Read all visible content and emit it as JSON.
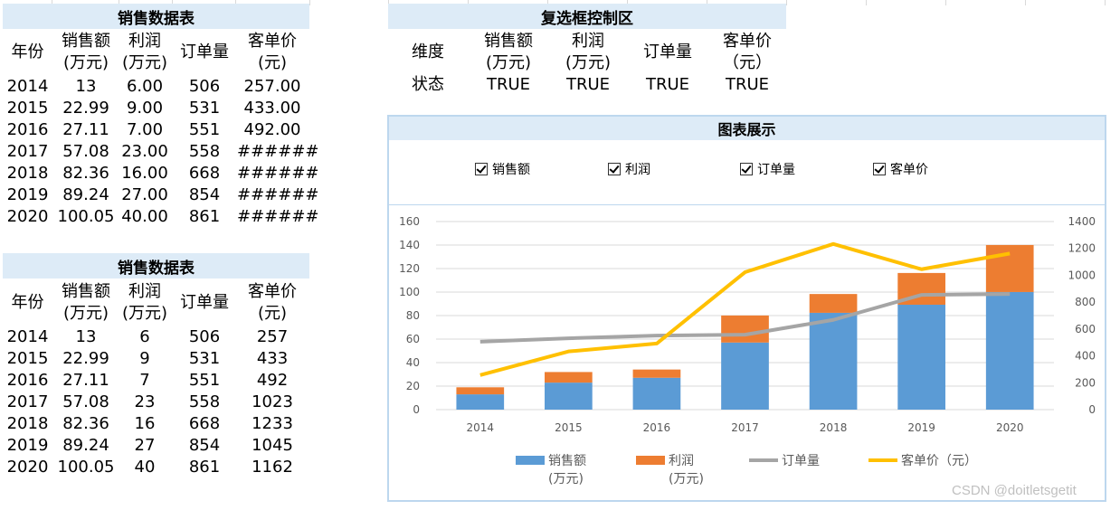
{
  "table1": {
    "title": "销售数据表",
    "headers": [
      [
        "年份"
      ],
      [
        "销售额",
        "(万元)"
      ],
      [
        "利润",
        "(万元)"
      ],
      [
        "订单量"
      ],
      [
        "客单价",
        "(元)"
      ]
    ],
    "rows": [
      [
        "2014",
        "13",
        "6.00",
        "506",
        "257.00"
      ],
      [
        "2015",
        "22.99",
        "9.00",
        "531",
        "433.00"
      ],
      [
        "2016",
        "27.11",
        "7.00",
        "551",
        "492.00"
      ],
      [
        "2017",
        "57.08",
        "23.00",
        "558",
        "######"
      ],
      [
        "2018",
        "82.36",
        "16.00",
        "668",
        "######"
      ],
      [
        "2019",
        "89.24",
        "27.00",
        "854",
        "######"
      ],
      [
        "2020",
        "100.05",
        "40.00",
        "861",
        "######"
      ]
    ]
  },
  "table2": {
    "title": "销售数据表",
    "headers": [
      [
        "年份"
      ],
      [
        "销售额",
        "(万元)"
      ],
      [
        "利润",
        "(万元)"
      ],
      [
        "订单量"
      ],
      [
        "客单价",
        "(元)"
      ]
    ],
    "rows": [
      [
        "2014",
        "13",
        "6",
        "506",
        "257"
      ],
      [
        "2015",
        "22.99",
        "9",
        "531",
        "433"
      ],
      [
        "2016",
        "27.11",
        "7",
        "551",
        "492"
      ],
      [
        "2017",
        "57.08",
        "23",
        "558",
        "1023"
      ],
      [
        "2018",
        "82.36",
        "16",
        "668",
        "1233"
      ],
      [
        "2019",
        "89.24",
        "27",
        "854",
        "1045"
      ],
      [
        "2020",
        "100.05",
        "40",
        "861",
        "1162"
      ]
    ]
  },
  "control": {
    "title": "复选框控制区",
    "dimension_label": "维度",
    "status_label": "状态",
    "columns": [
      [
        "销售额",
        "(万元)"
      ],
      [
        "利润",
        "(万元)"
      ],
      [
        "订单量"
      ],
      [
        "客单价",
        "（元）"
      ]
    ],
    "status": [
      "TRUE",
      "TRUE",
      "TRUE",
      "TRUE"
    ]
  },
  "chart_panel": {
    "title": "图表展示",
    "checkboxes": [
      {
        "label": "销售额",
        "checked": true
      },
      {
        "label": "利润",
        "checked": true
      },
      {
        "label": "订单量",
        "checked": true
      },
      {
        "label": "客单价",
        "checked": true
      }
    ]
  },
  "chart_data": {
    "type": "bar",
    "stacked": true,
    "categories": [
      "2014",
      "2015",
      "2016",
      "2017",
      "2018",
      "2019",
      "2020"
    ],
    "series": [
      {
        "name": "销售额\n(万元)",
        "kind": "bar",
        "axis": "left",
        "color": "#5b9bd5",
        "values": [
          13,
          22.99,
          27.11,
          57.08,
          82.36,
          89.24,
          100.05
        ]
      },
      {
        "name": "利润\n(万元)",
        "kind": "bar",
        "axis": "left",
        "color": "#ed7d31",
        "values": [
          6,
          9,
          7,
          23,
          16,
          27,
          40
        ]
      },
      {
        "name": "订单量",
        "kind": "line",
        "axis": "right",
        "color": "#a5a5a5",
        "values": [
          506,
          531,
          551,
          558,
          668,
          854,
          861
        ]
      },
      {
        "name": "客单价（元）",
        "kind": "line",
        "axis": "right",
        "color": "#ffc000",
        "values": [
          257,
          433,
          492,
          1023,
          1233,
          1045,
          1162
        ]
      }
    ],
    "y_left": {
      "min": 0,
      "max": 160,
      "step": 20,
      "ticks": [
        "0",
        "20",
        "40",
        "60",
        "80",
        "100",
        "120",
        "140",
        "160"
      ]
    },
    "y_right": {
      "min": 0,
      "max": 1400,
      "step": 200,
      "ticks": [
        "0",
        "200",
        "400",
        "600",
        "800",
        "1000",
        "1200",
        "1400"
      ]
    },
    "grid": true,
    "legend_position": "bottom"
  },
  "watermark": "CSDN @doitletsgetit"
}
